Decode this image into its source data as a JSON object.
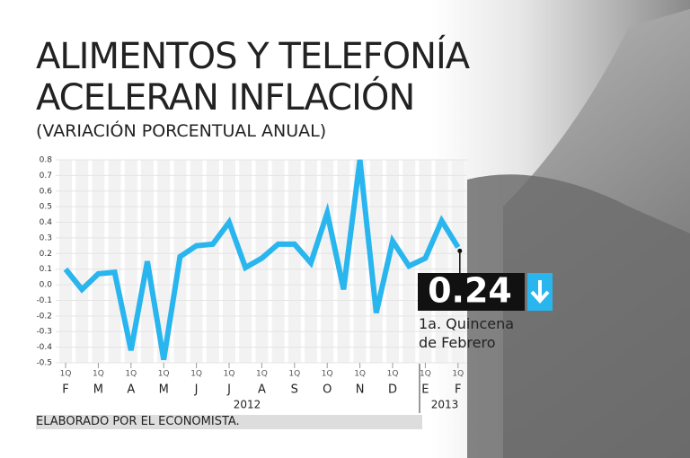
{
  "chart_data": {
    "type": "line",
    "title": "ALIMENTOS Y TELEFONÍA ACELERAN INFLACIÓN",
    "subtitle": "(VARIACIÓN PORCENTUAL ANUAL)",
    "categories": [
      "1Q",
      null,
      "1Q",
      null,
      "1Q",
      null,
      "1Q",
      null,
      "1Q",
      null,
      "1Q",
      null,
      "1Q",
      null,
      "1Q",
      null,
      "1Q",
      null,
      "1Q",
      null,
      "1Q",
      null,
      "1Q",
      null,
      "1Q"
    ],
    "months": [
      "F",
      "M",
      "A",
      "M",
      "J",
      "J",
      "A",
      "S",
      "O",
      "N",
      "D",
      "E",
      "F"
    ],
    "years": [
      "2012",
      "2013"
    ],
    "values": [
      0.1,
      -0.03,
      0.07,
      0.08,
      -0.42,
      0.15,
      -0.48,
      0.18,
      0.25,
      0.26,
      0.4,
      0.11,
      0.17,
      0.26,
      0.26,
      0.14,
      0.46,
      -0.03,
      0.8,
      -0.18,
      0.28,
      0.12,
      0.17,
      0.41,
      0.24
    ],
    "color": "#29b5ee",
    "ylim": [
      -0.5,
      0.8
    ],
    "yticks": [
      -0.5,
      -0.4,
      -0.3,
      -0.2,
      -0.1,
      {
        "value": 0,
        "label": "0.0"
      },
      0.1,
      0.2,
      0.3,
      0.4,
      0.5,
      0.6,
      0.7,
      0.8
    ],
    "callout_text": "1a. Quincena de Febrero",
    "source": "ELABORADO POR EL ECONOMISTA."
  }
}
